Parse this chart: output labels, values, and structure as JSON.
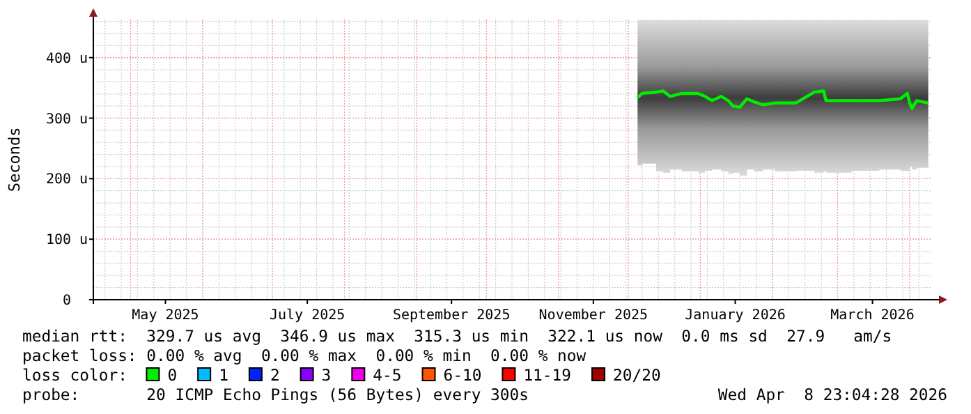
{
  "chart_data": {
    "type": "line",
    "ylabel": "Seconds",
    "legend_title": "loss color:",
    "legend": "bottom",
    "grid": true,
    "xlim": [
      "2025-04-15",
      "2026-04-10"
    ],
    "ylim": [
      0,
      463
    ],
    "xticks": [
      {
        "value": "2025-05-16",
        "label": "May 2025"
      },
      {
        "value": "2025-07-16",
        "label": "July 2025"
      },
      {
        "value": "2025-09-16",
        "label": "September 2025"
      },
      {
        "value": "2025-11-16",
        "label": "November 2025"
      },
      {
        "value": "2026-01-16",
        "label": "January 2026"
      },
      {
        "value": "2026-03-16",
        "label": "March 2026"
      }
    ],
    "yticks": [
      0,
      {
        "value": 100,
        "label": "100 u"
      },
      {
        "value": 200,
        "label": "200 u"
      },
      {
        "value": 300,
        "label": "300 u"
      },
      {
        "value": 400,
        "label": "400 u"
      }
    ],
    "x": [
      "2025-12-05",
      "2025-12-07",
      "2025-12-13",
      "2025-12-16",
      "2025-12-19",
      "2025-12-24",
      "2025-12-31",
      "2026-01-03",
      "2026-01-06",
      "2026-01-10",
      "2026-01-13",
      "2026-01-15",
      "2026-01-18",
      "2026-01-21",
      "2026-01-24",
      "2026-01-28",
      "2026-02-02",
      "2026-02-11",
      "2026-02-19",
      "2026-02-23",
      "2026-02-24",
      "2026-03-07",
      "2026-03-19",
      "2026-03-28",
      "2026-03-31",
      "2026-04-01",
      "2026-04-02",
      "2026-04-04",
      "2026-04-09"
    ],
    "series": [
      {
        "name": "0",
        "color": "#00ee00",
        "values": [
          334,
          341,
          343,
          345,
          336,
          341,
          341,
          336,
          329,
          336,
          329,
          320,
          318,
          332,
          327,
          322,
          325,
          325,
          343,
          345,
          329,
          329,
          329,
          332,
          341,
          325,
          316,
          329,
          325
        ],
        "lower": [
          222,
          225,
          212,
          210,
          215,
          212,
          210,
          213,
          215,
          212,
          208,
          210,
          205,
          215,
          212,
          215,
          212,
          213,
          210,
          212,
          210,
          213,
          215,
          213,
          212,
          220,
          215,
          218,
          215
        ],
        "upper": [
          462,
          462,
          462,
          462,
          462,
          462,
          462,
          462,
          462,
          462,
          462,
          462,
          462,
          462,
          462,
          462,
          462,
          462,
          462,
          462,
          462,
          462,
          462,
          462,
          462,
          462,
          462,
          462,
          462
        ]
      },
      {
        "name": "1",
        "color": "#00bbff",
        "values": [
          null,
          null,
          null,
          null,
          null,
          null,
          null,
          null,
          null,
          null,
          null,
          null,
          null,
          null,
          null,
          null,
          null,
          null,
          null,
          null,
          null,
          null,
          null,
          null,
          null,
          null,
          null,
          null,
          null
        ]
      },
      {
        "name": "2",
        "color": "#0022ff",
        "values": [
          null,
          null,
          null,
          null,
          null,
          null,
          null,
          null,
          null,
          null,
          null,
          null,
          null,
          null,
          null,
          null,
          null,
          null,
          null,
          null,
          null,
          null,
          null,
          null,
          null,
          null,
          null,
          null,
          null
        ]
      },
      {
        "name": "3",
        "color": "#8a00ff",
        "values": [
          null,
          null,
          null,
          null,
          null,
          null,
          null,
          null,
          null,
          null,
          null,
          null,
          null,
          null,
          null,
          null,
          null,
          null,
          null,
          null,
          null,
          null,
          null,
          null,
          null,
          null,
          null,
          null,
          null
        ]
      },
      {
        "name": "4-5",
        "color": "#ee00ee",
        "values": [
          null,
          null,
          null,
          null,
          null,
          null,
          null,
          null,
          null,
          null,
          null,
          null,
          null,
          null,
          null,
          null,
          null,
          null,
          null,
          null,
          null,
          null,
          null,
          null,
          null,
          null,
          null,
          null,
          null
        ]
      },
      {
        "name": "6-10",
        "color": "#ff5500",
        "values": [
          null,
          null,
          null,
          null,
          null,
          null,
          null,
          null,
          null,
          null,
          null,
          null,
          null,
          null,
          null,
          null,
          null,
          null,
          null,
          null,
          null,
          null,
          null,
          null,
          null,
          null,
          null,
          null,
          null
        ]
      },
      {
        "name": "11-19",
        "color": "#ff0000",
        "values": [
          null,
          null,
          null,
          null,
          null,
          null,
          null,
          null,
          null,
          null,
          null,
          null,
          null,
          null,
          null,
          null,
          null,
          null,
          null,
          null,
          null,
          null,
          null,
          null,
          null,
          null,
          null,
          null,
          null
        ]
      },
      {
        "name": "20/20",
        "color": "#a10000",
        "values": [
          null,
          null,
          null,
          null,
          null,
          null,
          null,
          null,
          null,
          null,
          null,
          null,
          null,
          null,
          null,
          null,
          null,
          null,
          null,
          null,
          null,
          null,
          null,
          null,
          null,
          null,
          null,
          null,
          null
        ]
      }
    ],
    "annotations": [
      "median rtt:  329.7 us avg  346.9 us max  315.3 us min  322.1 us now  0.0 ms sd  27.9   am/s",
      "packet loss: 0.00 % avg  0.00 % max  0.00 % min  0.00 % now",
      "probe:       20 ICMP Echo Pings (56 Bytes) every 300s",
      "Wed Apr  8 23:04:28 2026"
    ]
  }
}
